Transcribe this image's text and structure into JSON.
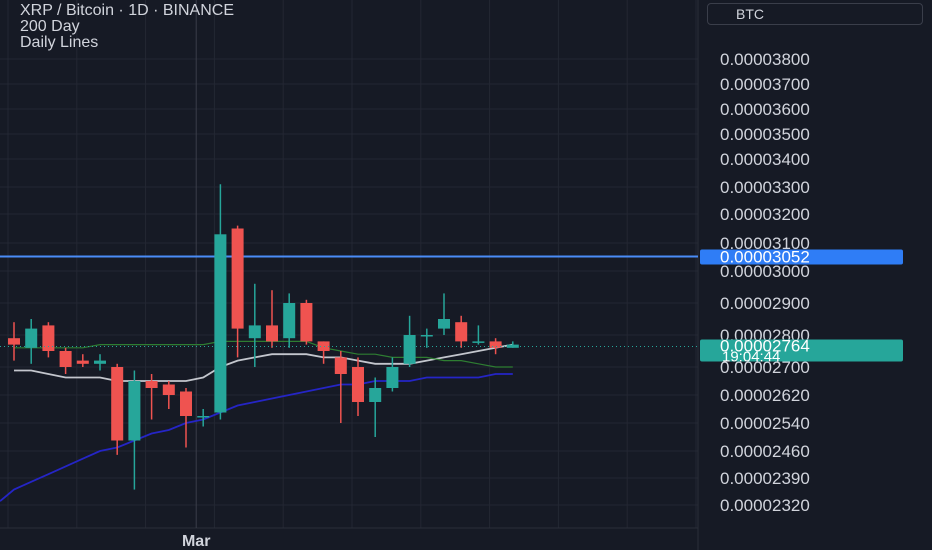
{
  "legend": {
    "line1": "XRP / Bitcoin · 1D · BINANCE",
    "line2": "200 Day",
    "line3": "Daily Lines"
  },
  "currency": "BTC",
  "colors": {
    "background": "#161a25",
    "grid": "#232733",
    "up": "#26a69a",
    "down": "#ef5350",
    "ma_gray": "#c3c6cd",
    "ma_blue": "#2525c6",
    "ma_green": "#2e7d32",
    "horizontal_line": "#4a8cf7",
    "last_price_badge": "#26a69a",
    "line_badge": "#2f7df6"
  },
  "chart_data": {
    "type": "candlestick",
    "y_axis_ticks": [
      3.8e-05,
      3.7e-05,
      3.6e-05,
      3.5e-05,
      3.4e-05,
      3.3e-05,
      3.2e-05,
      3.1e-05,
      3e-05,
      2.9e-05,
      2.8e-05,
      2.7e-05,
      2.62e-05,
      2.54e-05,
      2.46e-05,
      2.39e-05,
      2.32e-05
    ],
    "y_axis_tick_labels": [
      "0.00003800",
      "0.00003700",
      "0.00003600",
      "0.00003500",
      "0.00003400",
      "0.00003300",
      "0.00003200",
      "0.00003100",
      "0.00003000",
      "0.00002900",
      "0.00002800",
      "0.00002700",
      "0.00002620",
      "0.00002540",
      "0.00002460",
      "0.00002390",
      "0.00002320"
    ],
    "x_axis_labels": [
      {
        "index": 11,
        "label": "Mar"
      }
    ],
    "candles": [
      {
        "o": 2.79e-05,
        "h": 2.84e-05,
        "l": 2.72e-05,
        "c": 2.77e-05
      },
      {
        "o": 2.76e-05,
        "h": 2.85e-05,
        "l": 2.71e-05,
        "c": 2.82e-05
      },
      {
        "o": 2.83e-05,
        "h": 2.84e-05,
        "l": 2.73e-05,
        "c": 2.75e-05
      },
      {
        "o": 2.75e-05,
        "h": 2.76e-05,
        "l": 2.68e-05,
        "c": 2.7e-05
      },
      {
        "o": 2.72e-05,
        "h": 2.74e-05,
        "l": 2.7e-05,
        "c": 2.71e-05
      },
      {
        "o": 2.71e-05,
        "h": 2.74e-05,
        "l": 2.69e-05,
        "c": 2.72e-05
      },
      {
        "o": 2.7e-05,
        "h": 2.71e-05,
        "l": 2.45e-05,
        "c": 2.49e-05
      },
      {
        "o": 2.49e-05,
        "h": 2.69e-05,
        "l": 2.36e-05,
        "c": 2.66e-05
      },
      {
        "o": 2.66e-05,
        "h": 2.68e-05,
        "l": 2.55e-05,
        "c": 2.64e-05
      },
      {
        "o": 2.65e-05,
        "h": 2.66e-05,
        "l": 2.58e-05,
        "c": 2.62e-05
      },
      {
        "o": 2.63e-05,
        "h": 2.64e-05,
        "l": 2.47e-05,
        "c": 2.56e-05
      },
      {
        "o": 2.56e-05,
        "h": 2.58e-05,
        "l": 2.53e-05,
        "c": 2.56e-05
      },
      {
        "o": 2.57e-05,
        "h": 3.31e-05,
        "l": 2.55e-05,
        "c": 3.13e-05
      },
      {
        "o": 3.15e-05,
        "h": 3.16e-05,
        "l": 2.73e-05,
        "c": 2.82e-05
      },
      {
        "o": 2.79e-05,
        "h": 2.96e-05,
        "l": 2.7e-05,
        "c": 2.83e-05
      },
      {
        "o": 2.83e-05,
        "h": 2.94e-05,
        "l": 2.76e-05,
        "c": 2.78e-05
      },
      {
        "o": 2.79e-05,
        "h": 2.93e-05,
        "l": 2.76e-05,
        "c": 2.9e-05
      },
      {
        "o": 2.9e-05,
        "h": 2.91e-05,
        "l": 2.77e-05,
        "c": 2.78e-05
      },
      {
        "o": 2.78e-05,
        "h": 2.78e-05,
        "l": 2.71e-05,
        "c": 2.75e-05
      },
      {
        "o": 2.73e-05,
        "h": 2.75e-05,
        "l": 2.54e-05,
        "c": 2.68e-05
      },
      {
        "o": 2.7e-05,
        "h": 2.73e-05,
        "l": 2.56e-05,
        "c": 2.6e-05
      },
      {
        "o": 2.6e-05,
        "h": 2.67e-05,
        "l": 2.5e-05,
        "c": 2.64e-05
      },
      {
        "o": 2.64e-05,
        "h": 2.73e-05,
        "l": 2.63e-05,
        "c": 2.7e-05
      },
      {
        "o": 2.71e-05,
        "h": 2.86e-05,
        "l": 2.7e-05,
        "c": 2.8e-05
      },
      {
        "o": 2.8e-05,
        "h": 2.82e-05,
        "l": 2.76e-05,
        "c": 2.8e-05
      },
      {
        "o": 2.82e-05,
        "h": 2.93e-05,
        "l": 2.8e-05,
        "c": 2.85e-05
      },
      {
        "o": 2.84e-05,
        "h": 2.86e-05,
        "l": 2.76e-05,
        "c": 2.78e-05
      },
      {
        "o": 2.78e-05,
        "h": 2.83e-05,
        "l": 2.77e-05,
        "c": 2.78e-05
      },
      {
        "o": 2.78e-05,
        "h": 2.79e-05,
        "l": 2.74e-05,
        "c": 2.76e-05
      },
      {
        "o": 2.76e-05,
        "h": 2.78e-05,
        "l": 2.76e-05,
        "c": 2.77e-05
      }
    ],
    "moving_averages": [
      {
        "color": "#c3c6cd",
        "values": [
          2.69e-05,
          2.69e-05,
          2.68e-05,
          2.67e-05,
          2.67e-05,
          2.67e-05,
          2.66e-05,
          2.66e-05,
          2.66e-05,
          2.66e-05,
          2.66e-05,
          2.67e-05,
          2.7e-05,
          2.72e-05,
          2.73e-05,
          2.74e-05,
          2.74e-05,
          2.74e-05,
          2.73e-05,
          2.73e-05,
          2.72e-05,
          2.71e-05,
          2.71e-05,
          2.71e-05,
          2.72e-05,
          2.73e-05,
          2.74e-05,
          2.75e-05,
          2.76e-05,
          2.77e-05
        ]
      },
      {
        "color": "#2525c6",
        "values": [
          2.36e-05,
          2.38e-05,
          2.4e-05,
          2.42e-05,
          2.44e-05,
          2.46e-05,
          2.47e-05,
          2.49e-05,
          2.51e-05,
          2.52e-05,
          2.54e-05,
          2.55e-05,
          2.57e-05,
          2.59e-05,
          2.6e-05,
          2.61e-05,
          2.62e-05,
          2.63e-05,
          2.64e-05,
          2.65e-05,
          2.65e-05,
          2.66e-05,
          2.66e-05,
          2.66e-05,
          2.67e-05,
          2.67e-05,
          2.67e-05,
          2.67e-05,
          2.68e-05,
          2.68e-05
        ]
      },
      {
        "color": "#2e7d32",
        "values": [
          2.76e-05,
          2.76e-05,
          2.76e-05,
          2.76e-05,
          2.76e-05,
          2.77e-05,
          2.77e-05,
          2.77e-05,
          2.77e-05,
          2.77e-05,
          2.77e-05,
          2.77e-05,
          2.78e-05,
          2.78e-05,
          2.78e-05,
          2.78e-05,
          2.78e-05,
          2.78e-05,
          2.76e-05,
          2.75e-05,
          2.74e-05,
          2.74e-05,
          2.73e-05,
          2.73e-05,
          2.73e-05,
          2.72e-05,
          2.72e-05,
          2.71e-05,
          2.7e-05,
          2.7e-05
        ]
      }
    ],
    "horizontal_line": {
      "value": 3.052e-05,
      "label": "0.00003052"
    },
    "last_price": {
      "value": 2.764e-05,
      "label": "0.00002764",
      "countdown": "19:04:44"
    },
    "grid": true,
    "legend": "top-left"
  }
}
